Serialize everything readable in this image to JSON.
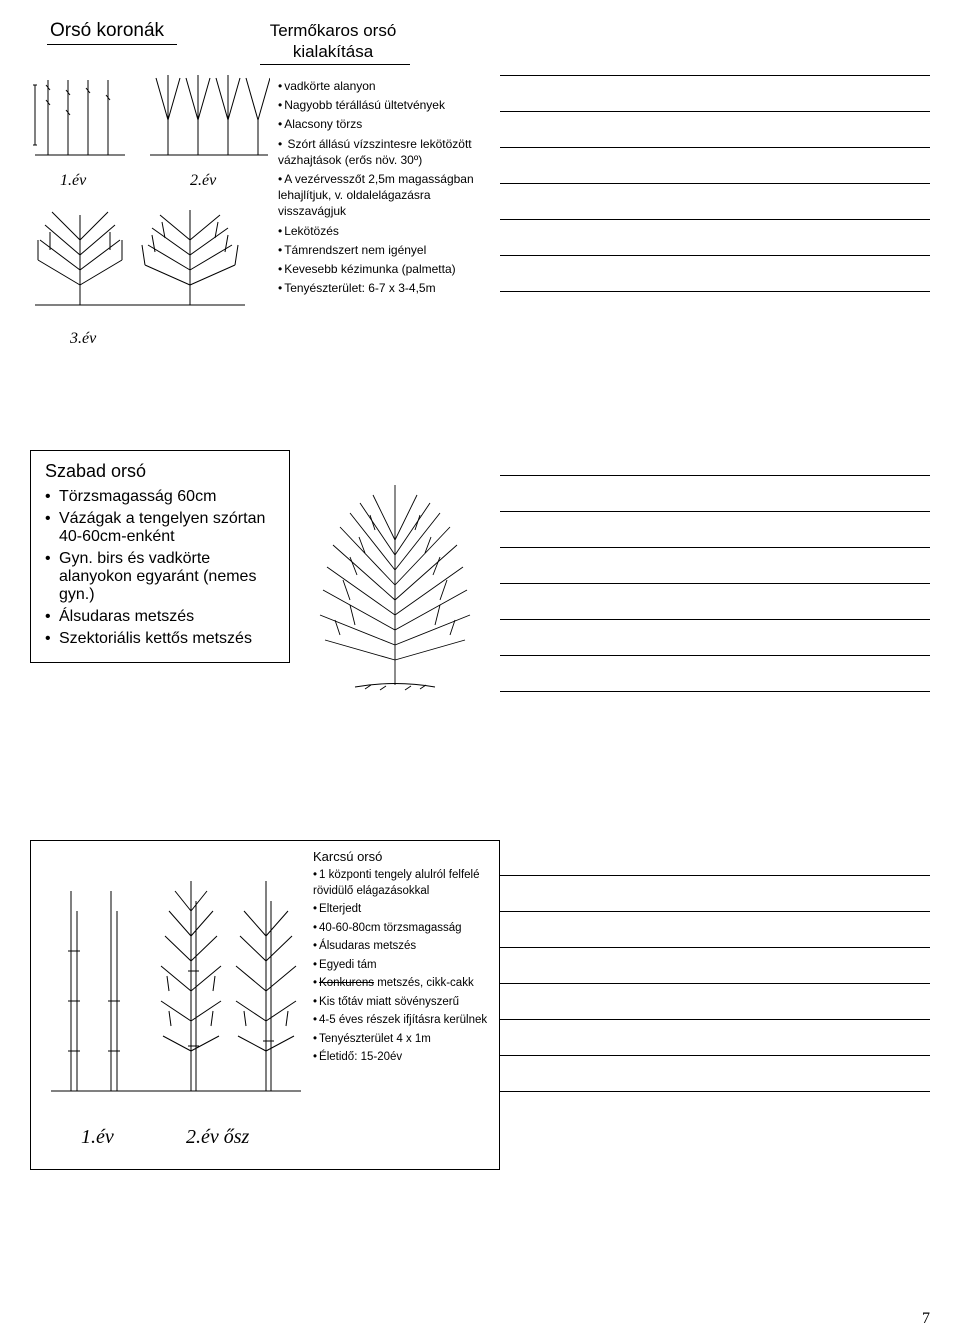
{
  "page_number": "7",
  "colors": {
    "text": "#000000",
    "line": "#000000",
    "bg": "#ffffff"
  },
  "slide1": {
    "title_left": "Orsó koronák",
    "title_right_line1": "Termőkaros orsó",
    "title_right_line2": "kialakítása",
    "year1": "1.év",
    "year2": "2.év",
    "year3": "3.év",
    "bullets": [
      "vadkörte alanyon",
      "Nagyobb térállású ültetvények",
      "Alacsony törzs",
      " Szórt állású vízszintesre lekötözött vázhajtások (erős növ. 30º)",
      "A vezérvesszőt 2,5m magasságban lehajlítjuk, v. oldalelágazásra visszavágjuk",
      "Lekötözés",
      "Támrendszert nem igényel",
      "Kevesebb kézimunka (palmetta)",
      "Tenyészterület: 6-7 x 3-4,5m"
    ]
  },
  "slide2": {
    "title": "Szabad orsó",
    "items": [
      "Törzsmagasság 60cm",
      "Vázágak a tengelyen szórtan 40-60cm-enként",
      "Gyn. birs és vadkörte alanyokon egyaránt (nemes gyn.)",
      "Álsudaras metszés",
      "Szektoriális kettős metszés"
    ]
  },
  "slide3": {
    "title": "Karcsú orsó",
    "year1": "1.év",
    "year2": "2.év ősz",
    "bullets": [
      "1 központi tengely alulról felfelé rövidülő elágazásokkal",
      "Elterjedt",
      "40-60-80cm törzsmagasság",
      "Álsudaras metszés",
      "Egyedi tám",
      "Konkurens metszés, cikk-cakk",
      "Kis tőtáv miatt sövényszerű",
      "4-5 éves részek ifjításra kerülnek",
      "Tenyészterület 4 x 1m",
      "Életidő: 15-20év"
    ],
    "strike_index": 5
  }
}
